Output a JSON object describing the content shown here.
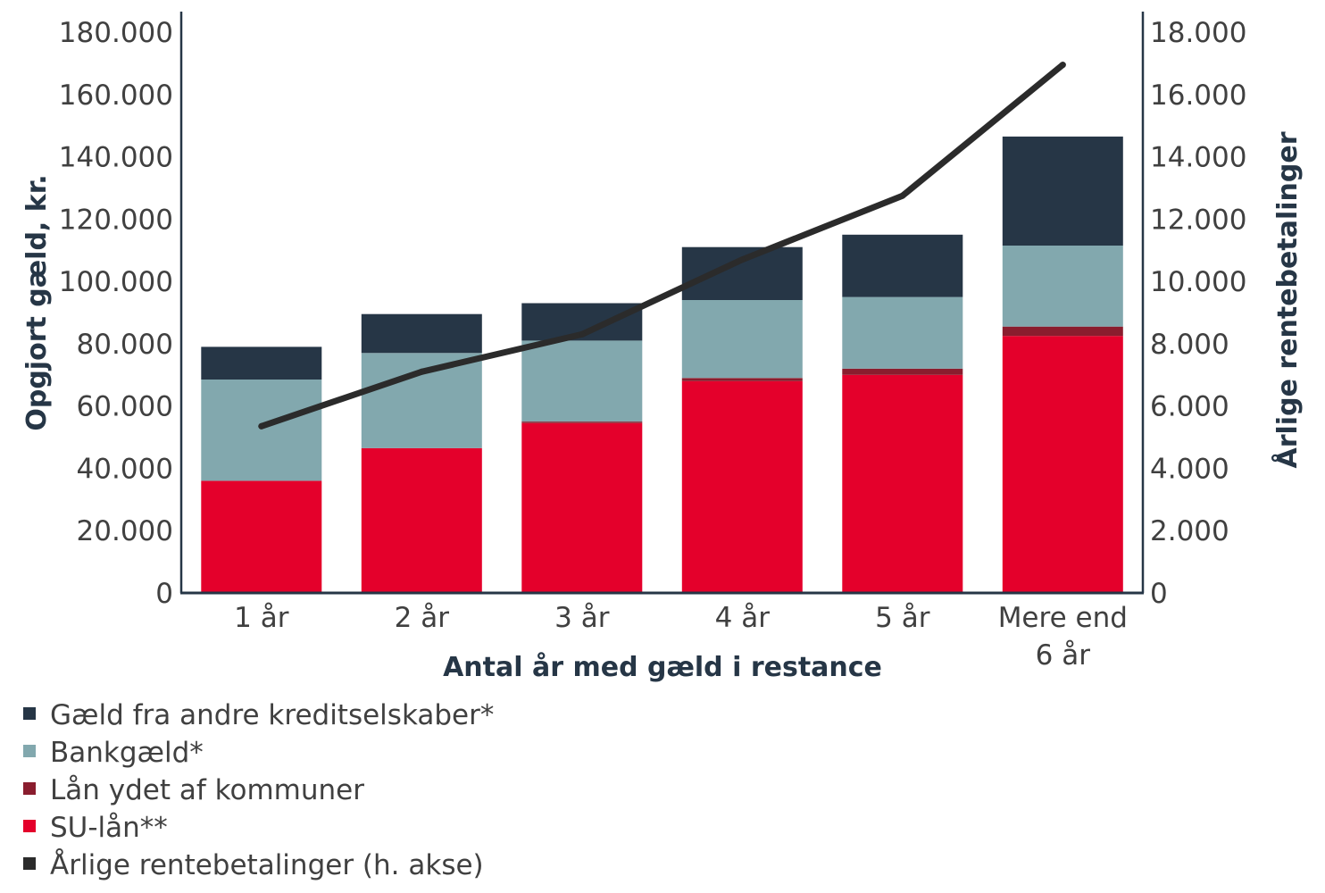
{
  "chart_data": {
    "type": "bar",
    "stacked": true,
    "categories": [
      [
        "1 år"
      ],
      [
        "2 år"
      ],
      [
        "3 år"
      ],
      [
        "4 år"
      ],
      [
        "5 år"
      ],
      [
        "Mere end",
        "6 år"
      ]
    ],
    "xlabel": "Antal år med gæld i restance",
    "ylabel": "Opgjort gæld, kr.",
    "y2label": "Årlige rentebetalinger",
    "ylim": [
      0,
      180000
    ],
    "y2lim": [
      0,
      18000
    ],
    "yticks": [
      0,
      20000,
      40000,
      60000,
      80000,
      100000,
      120000,
      140000,
      160000,
      180000
    ],
    "y2ticks": [
      0,
      2000,
      4000,
      6000,
      8000,
      10000,
      12000,
      14000,
      16000,
      18000
    ],
    "grid": false,
    "legend_position": "bottom",
    "series": [
      {
        "name": "Gæld fra andre kreditselskaber*",
        "type": "bar",
        "axis": "left",
        "color": "#263646",
        "values": [
          10500,
          12500,
          12000,
          17000,
          20000,
          35000
        ]
      },
      {
        "name": "Bankgæld*",
        "type": "bar",
        "axis": "left",
        "color": "#82a8ae",
        "values": [
          32500,
          30500,
          26000,
          25000,
          23000,
          26000
        ]
      },
      {
        "name": "Lån ydet af kommuner",
        "type": "bar",
        "axis": "left",
        "color": "#8a1d2e",
        "values": [
          0,
          0,
          500,
          1000,
          2000,
          3000
        ]
      },
      {
        "name": "SU-lån**",
        "type": "bar",
        "axis": "left",
        "color": "#e4002b",
        "values": [
          36000,
          46500,
          54500,
          68000,
          70000,
          82500
        ]
      },
      {
        "name": "Årlige rentebetalinger (h. akse)",
        "type": "line",
        "axis": "right",
        "color": "#2b2b2b",
        "values": [
          5350,
          7100,
          8300,
          10700,
          12750,
          16950
        ]
      }
    ]
  }
}
